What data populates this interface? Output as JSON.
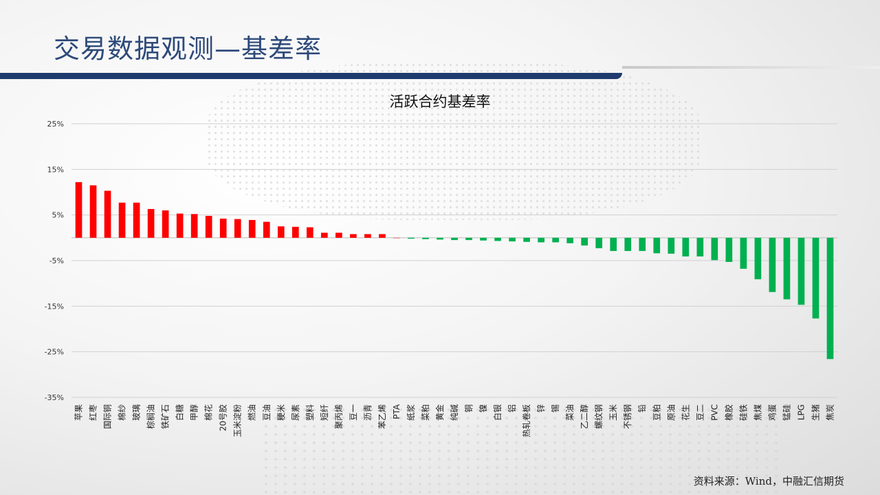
{
  "header": {
    "title": "交易数据观测—基差率"
  },
  "footer": {
    "source": "资料来源：Wind，中融汇信期货"
  },
  "colors": {
    "positive": "#ff0000",
    "negative": "#00b050",
    "title_bar": "#1f3b6e"
  },
  "chart_data": {
    "type": "bar",
    "title": "活跃合约基差率",
    "xlabel": "",
    "ylabel": "",
    "ylim": [
      -35,
      25
    ],
    "yticks": [
      25,
      15,
      5,
      -5,
      -15,
      -25,
      -35
    ],
    "ytick_labels": [
      "25%",
      "15%",
      "5%",
      "-5%",
      "-15%",
      "-25%",
      "-35%"
    ],
    "grid": true,
    "categories": [
      "苹果",
      "红枣",
      "国际铜",
      "棉纱",
      "玻璃",
      "棕榈油",
      "铁矿石",
      "白糖",
      "甲醇",
      "棉花",
      "20号胶",
      "玉米淀粉",
      "燃油",
      "豆油",
      "粳米",
      "尿素",
      "塑料",
      "短纤",
      "聚丙烯",
      "豆一",
      "沥青",
      "苯乙烯",
      "PTA",
      "纸浆",
      "菜粕",
      "黄金",
      "纯碱",
      "铜",
      "镍",
      "白银",
      "铝",
      "热轧卷板",
      "锌",
      "锡",
      "菜油",
      "乙二醇",
      "螺纹钢",
      "玉米",
      "不锈钢",
      "铅",
      "豆粕",
      "原油",
      "花生",
      "豆二",
      "PVC",
      "橡胶",
      "硅铁",
      "焦煤",
      "鸡蛋",
      "锰硅",
      "LPG",
      "生猪",
      "焦炭"
    ],
    "values": [
      12.2,
      11.5,
      10.3,
      7.7,
      7.7,
      6.3,
      6.0,
      5.3,
      5.2,
      4.8,
      4.2,
      4.1,
      3.9,
      3.5,
      2.5,
      2.4,
      2.3,
      1.1,
      1.1,
      0.8,
      0.8,
      0.8,
      0.0,
      -0.2,
      -0.3,
      -0.4,
      -0.5,
      -0.5,
      -0.6,
      -0.7,
      -0.8,
      -0.9,
      -1.0,
      -1.0,
      -1.2,
      -1.7,
      -2.3,
      -2.9,
      -2.9,
      -2.9,
      -3.4,
      -3.5,
      -4.1,
      -4.1,
      -4.9,
      -5.3,
      -6.8,
      -9.1,
      -11.9,
      -13.5,
      -14.7,
      -17.7,
      -26.6
    ]
  }
}
